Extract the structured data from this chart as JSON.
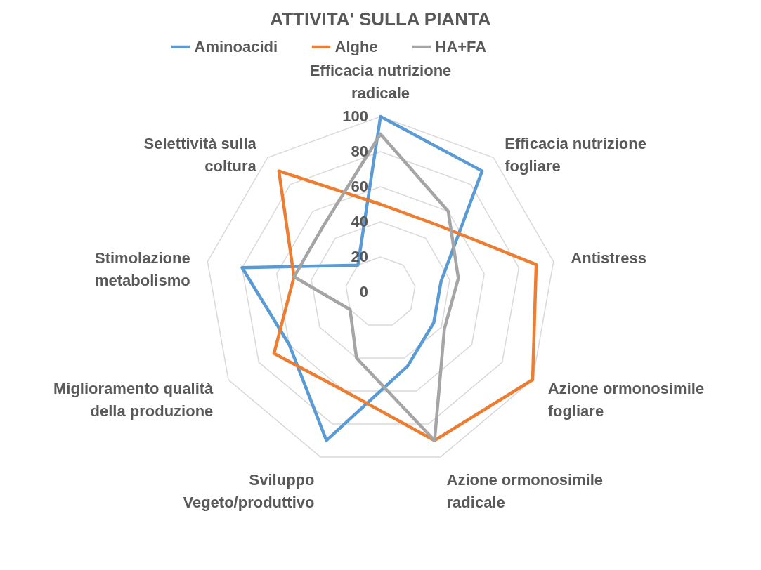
{
  "chart_data": {
    "type": "radar",
    "title": "ATTIVITA' SULLA PIANTA",
    "categories": [
      "Efficacia nutrizione radicale",
      "Efficacia nutrizione fogliare",
      "Antistress",
      "Azione ormonosimile fogliare",
      "Azione ormonosimile radicale",
      "Sviluppo Vegeto/produttivo",
      "Miglioramento qualità della produzione",
      "Stimolazione metabolismo",
      "Selettività sulla coltura"
    ],
    "series": [
      {
        "name": "Aminoacidi",
        "color": "#5b9bd5",
        "values": [
          100,
          90,
          35,
          35,
          45,
          90,
          60,
          80,
          20
        ]
      },
      {
        "name": "Alghe",
        "color": "#ed7d31",
        "values": [
          50,
          50,
          90,
          100,
          90,
          60,
          70,
          50,
          90
        ]
      },
      {
        "name": "HA+FA",
        "color": "#a5a5a5",
        "values": [
          90,
          60,
          45,
          42,
          90,
          40,
          20,
          50,
          50
        ]
      }
    ],
    "ylim": [
      0,
      100
    ],
    "yticks": [
      0,
      20,
      40,
      60,
      80,
      100
    ],
    "grid": true,
    "legend": "top",
    "line_style": "solid"
  }
}
